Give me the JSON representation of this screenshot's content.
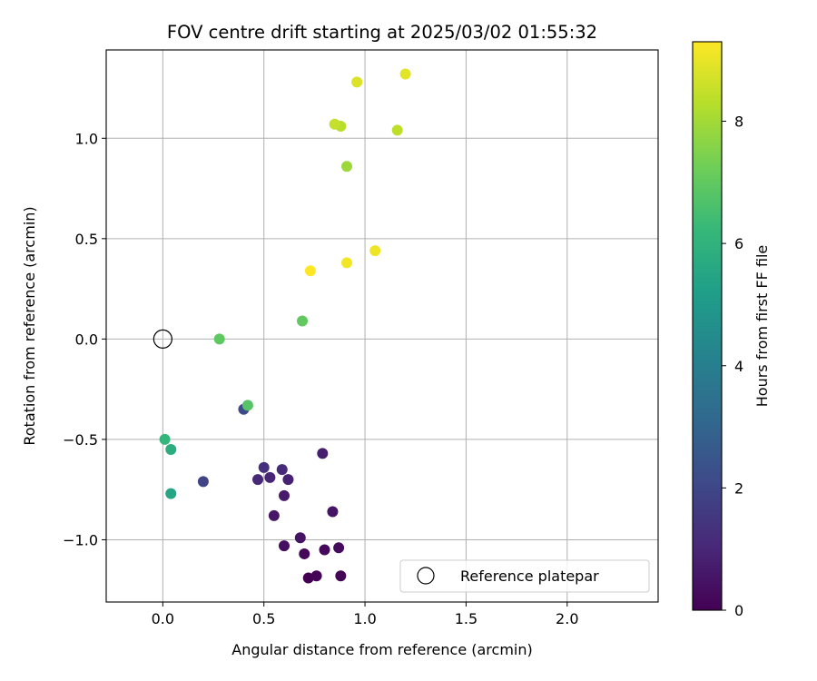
{
  "chart_data": {
    "type": "scatter",
    "title": "FOV centre drift starting at 2025/03/02 01:55:32",
    "xlabel": "Angular distance from reference (arcmin)",
    "ylabel": "Rotation from reference (arcmin)",
    "colorbar_label": "Hours from first FF file",
    "xlim": [
      -0.28,
      2.45
    ],
    "ylim": [
      -1.31,
      1.44
    ],
    "xticks": [
      0.0,
      0.5,
      1.0,
      1.5,
      2.0
    ],
    "xtick_labels": [
      "0.0",
      "0.5",
      "1.0",
      "1.5",
      "2.0"
    ],
    "yticks": [
      -1.0,
      -0.5,
      0.0,
      0.5,
      1.0
    ],
    "ytick_labels": [
      "−1.0",
      "−0.5",
      "0.0",
      "0.5",
      "1.0"
    ],
    "colorbar_range": [
      0,
      9.3
    ],
    "colorbar_ticks": [
      0,
      2,
      4,
      6,
      8
    ],
    "colorbar_tick_labels": [
      "0",
      "2",
      "4",
      "6",
      "8"
    ],
    "colormap": "viridis",
    "grid": true,
    "legend": {
      "position": "lower-right",
      "entries": [
        "Reference platepar"
      ]
    },
    "reference_point": {
      "x": 0.0,
      "y": 0.0
    },
    "points": [
      {
        "x": 0.72,
        "y": -1.19,
        "t": 0.0
      },
      {
        "x": 0.76,
        "y": -1.18,
        "t": 0.05
      },
      {
        "x": 0.88,
        "y": -1.18,
        "t": 0.1
      },
      {
        "x": 0.7,
        "y": -1.07,
        "t": 0.15
      },
      {
        "x": 0.8,
        "y": -1.05,
        "t": 0.2
      },
      {
        "x": 0.87,
        "y": -1.04,
        "t": 0.3
      },
      {
        "x": 0.6,
        "y": -1.03,
        "t": 0.35
      },
      {
        "x": 0.68,
        "y": -0.99,
        "t": 0.45
      },
      {
        "x": 0.84,
        "y": -0.86,
        "t": 0.5
      },
      {
        "x": 0.55,
        "y": -0.88,
        "t": 0.55
      },
      {
        "x": 0.6,
        "y": -0.78,
        "t": 0.65
      },
      {
        "x": 0.79,
        "y": -0.57,
        "t": 0.75
      },
      {
        "x": 0.62,
        "y": -0.7,
        "t": 0.85
      },
      {
        "x": 0.53,
        "y": -0.69,
        "t": 0.95
      },
      {
        "x": 0.47,
        "y": -0.7,
        "t": 1.05
      },
      {
        "x": 0.59,
        "y": -0.65,
        "t": 1.1
      },
      {
        "x": 0.5,
        "y": -0.64,
        "t": 1.25
      },
      {
        "x": 0.2,
        "y": -0.71,
        "t": 1.9
      },
      {
        "x": 0.4,
        "y": -0.35,
        "t": 2.1
      },
      {
        "x": 0.04,
        "y": -0.77,
        "t": 5.5
      },
      {
        "x": 0.04,
        "y": -0.55,
        "t": 5.8
      },
      {
        "x": 0.01,
        "y": -0.5,
        "t": 6.1
      },
      {
        "x": 0.42,
        "y": -0.33,
        "t": 6.8
      },
      {
        "x": 0.28,
        "y": 0.0,
        "t": 6.95
      },
      {
        "x": 0.69,
        "y": 0.09,
        "t": 7.0
      },
      {
        "x": 0.91,
        "y": 0.86,
        "t": 7.9
      },
      {
        "x": 0.88,
        "y": 1.06,
        "t": 8.3
      },
      {
        "x": 1.16,
        "y": 1.04,
        "t": 8.4
      },
      {
        "x": 0.85,
        "y": 1.07,
        "t": 8.5
      },
      {
        "x": 0.96,
        "y": 1.28,
        "t": 8.8
      },
      {
        "x": 1.2,
        "y": 1.32,
        "t": 8.9
      },
      {
        "x": 1.05,
        "y": 0.44,
        "t": 9.1
      },
      {
        "x": 0.91,
        "y": 0.38,
        "t": 9.15
      },
      {
        "x": 0.73,
        "y": 0.34,
        "t": 9.3
      }
    ]
  }
}
